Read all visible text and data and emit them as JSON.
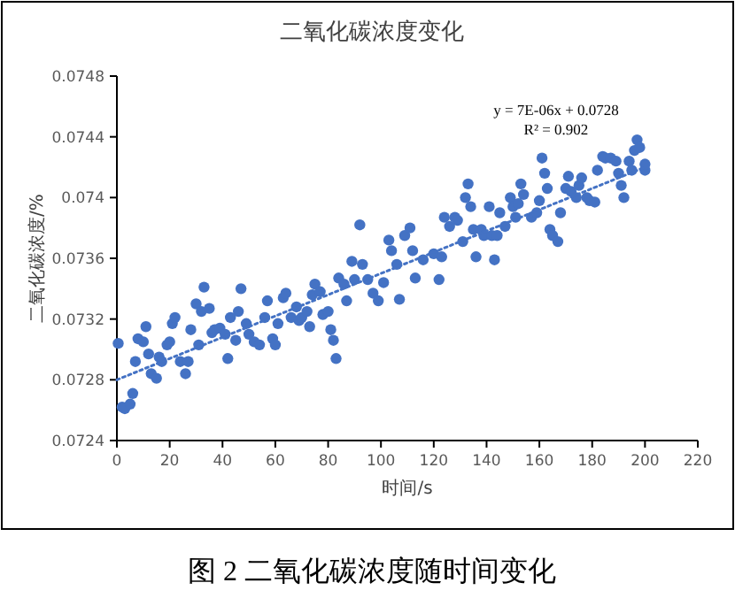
{
  "chart_data": {
    "type": "scatter",
    "title": "二氧化碳浓度变化",
    "xlabel": "时间/s",
    "ylabel": "二氧化碳浓度/%",
    "xlim": [
      0,
      220
    ],
    "xticks": [
      0,
      20,
      40,
      60,
      80,
      100,
      120,
      140,
      160,
      180,
      200,
      220
    ],
    "ylim": [
      0.0724,
      0.0748
    ],
    "yticks": [
      0.0724,
      0.0728,
      0.0732,
      0.0736,
      0.074,
      0.0744,
      0.0748
    ],
    "grid": false,
    "annotations": [
      "y = 7E-06x + 0.0728",
      "R² = 0.902",
      "图 2  二氧化碳浓度随时间变化"
    ],
    "series": [
      {
        "marker": "circle",
        "color": "#4472c4",
        "x": [
          0.5,
          2,
          3,
          5,
          6,
          7,
          8,
          10,
          11,
          12,
          13,
          15,
          16,
          17,
          19,
          20,
          21,
          22,
          24,
          26,
          27,
          28,
          30,
          31,
          32,
          33,
          35,
          36,
          37,
          39,
          41,
          42,
          43,
          45,
          46,
          47,
          49,
          50,
          52,
          54,
          56,
          57,
          59,
          60,
          61,
          63,
          64,
          66,
          68,
          69,
          70,
          72,
          73,
          74,
          75,
          77,
          78,
          80,
          81,
          82,
          83,
          84,
          86,
          87,
          89,
          90,
          92,
          93,
          95,
          97,
          99,
          101,
          103,
          104,
          106,
          107,
          109,
          111,
          112,
          113,
          116,
          120,
          122,
          123,
          124,
          126,
          128,
          129,
          131,
          132,
          133,
          134,
          135,
          136,
          138,
          139,
          141,
          142,
          143,
          144,
          145,
          147,
          149,
          150,
          151,
          152,
          153,
          154,
          157,
          159,
          160,
          161,
          162,
          163,
          164,
          165,
          167,
          168,
          170,
          171,
          172,
          174,
          175,
          176,
          178,
          179,
          181,
          182,
          184,
          185,
          187,
          189,
          190,
          191,
          192,
          194,
          195,
          196,
          197,
          198,
          200,
          200
        ],
        "values": [
          0.07304,
          0.07262,
          0.07261,
          0.07264,
          0.07271,
          0.07292,
          0.07307,
          0.07305,
          0.07315,
          0.07297,
          0.07284,
          0.07281,
          0.07295,
          0.07292,
          0.07303,
          0.07305,
          0.07317,
          0.07321,
          0.07292,
          0.07284,
          0.07292,
          0.07313,
          0.0733,
          0.07303,
          0.07325,
          0.07341,
          0.07327,
          0.07311,
          0.07313,
          0.07314,
          0.0731,
          0.07294,
          0.07321,
          0.07306,
          0.07325,
          0.0734,
          0.07317,
          0.0731,
          0.07305,
          0.07303,
          0.07321,
          0.07332,
          0.07307,
          0.07303,
          0.07317,
          0.07334,
          0.07337,
          0.07321,
          0.07328,
          0.07319,
          0.07321,
          0.07325,
          0.07315,
          0.07336,
          0.07343,
          0.07338,
          0.07323,
          0.07325,
          0.07313,
          0.07306,
          0.07294,
          0.07347,
          0.07343,
          0.07332,
          0.07358,
          0.07346,
          0.07382,
          0.07356,
          0.07346,
          0.07337,
          0.07332,
          0.07344,
          0.07372,
          0.07365,
          0.07356,
          0.07333,
          0.07375,
          0.0738,
          0.07365,
          0.07347,
          0.07359,
          0.07363,
          0.07346,
          0.07361,
          0.07387,
          0.07381,
          0.07387,
          0.07385,
          0.07371,
          0.074,
          0.07409,
          0.07394,
          0.07379,
          0.07361,
          0.07379,
          0.07375,
          0.07394,
          0.07375,
          0.07359,
          0.07375,
          0.0739,
          0.07381,
          0.074,
          0.07394,
          0.07387,
          0.07396,
          0.07409,
          0.07402,
          0.07387,
          0.0739,
          0.07398,
          0.07426,
          0.07416,
          0.07406,
          0.07379,
          0.07375,
          0.07371,
          0.0739,
          0.07406,
          0.07414,
          0.07404,
          0.074,
          0.07408,
          0.07413,
          0.074,
          0.07398,
          0.07397,
          0.07418,
          0.07427,
          0.07426,
          0.07426,
          0.07424,
          0.07416,
          0.07408,
          0.074,
          0.07424,
          0.07418,
          0.07431,
          0.07438,
          0.07433,
          0.07418,
          0.07422
        ]
      },
      {
        "type": "line",
        "color": "#4472c4",
        "line_style": "dotted",
        "x": [
          0,
          200
        ],
        "values": [
          0.0728,
          0.0742
        ]
      }
    ]
  }
}
